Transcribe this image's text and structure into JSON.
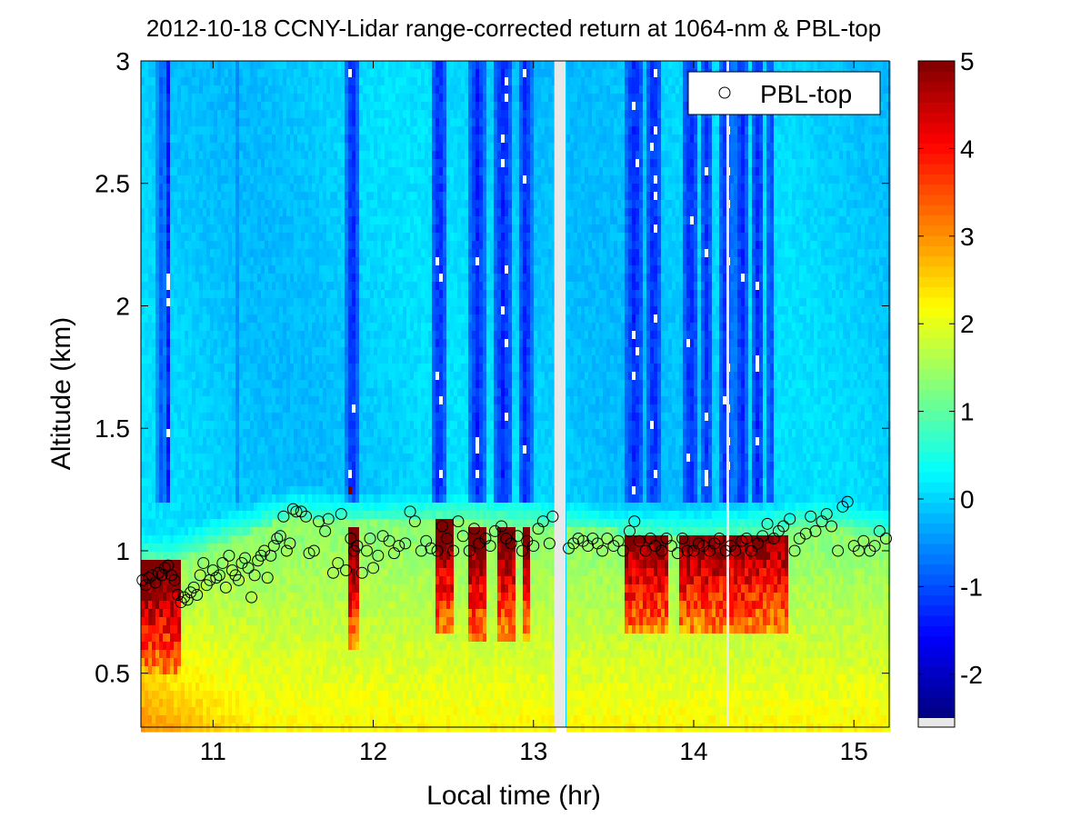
{
  "chart_data": {
    "type": "heatmap",
    "title": "2012-10-18 CCNY-Lidar range-corrected return at 1064-nm & PBL-top",
    "xlabel": "Local time (hr)",
    "ylabel": "Altitude (km)",
    "xlim": [
      10.55,
      15.22
    ],
    "ylim": [
      0.28,
      3.0
    ],
    "xticks": [
      11,
      12,
      13,
      14,
      15
    ],
    "xtick_labels": [
      "11",
      "12",
      "13",
      "14",
      "15"
    ],
    "yticks": [
      0.5,
      1,
      1.5,
      2,
      2.5,
      3
    ],
    "ytick_labels": [
      "0.5",
      "1",
      "1.5",
      "2",
      "2.5",
      "3"
    ],
    "colorbar": {
      "range": [
        -2.5,
        5
      ],
      "ticks": [
        -2,
        -1,
        0,
        1,
        2,
        3,
        4,
        5
      ],
      "tick_labels": [
        "-2",
        "-1",
        "0",
        "1",
        "2",
        "3",
        "4",
        "5"
      ],
      "colormap": "jet"
    },
    "data_gap": [
      13.13,
      13.2
    ],
    "blank_line_time": 14.21,
    "cloud_columns": [
      {
        "t": 10.68,
        "w": 0.03,
        "strength": 0.7
      },
      {
        "t": 10.72,
        "w": 0.02,
        "strength": 1.0
      },
      {
        "t": 11.87,
        "w": 0.04,
        "strength": 1.0
      },
      {
        "t": 12.41,
        "w": 0.05,
        "strength": 1.0
      },
      {
        "t": 12.65,
        "w": 0.05,
        "strength": 1.0
      },
      {
        "t": 12.81,
        "w": 0.06,
        "strength": 1.0
      },
      {
        "t": 12.95,
        "w": 0.04,
        "strength": 1.0
      },
      {
        "t": 13.63,
        "w": 0.06,
        "strength": 1.0
      },
      {
        "t": 13.75,
        "w": 0.05,
        "strength": 1.0
      },
      {
        "t": 13.98,
        "w": 0.05,
        "strength": 1.0
      },
      {
        "t": 14.08,
        "w": 0.04,
        "strength": 0.9
      },
      {
        "t": 14.2,
        "w": 0.04,
        "strength": 1.0
      },
      {
        "t": 14.3,
        "w": 0.04,
        "strength": 1.0
      },
      {
        "t": 14.4,
        "w": 0.04,
        "strength": 1.0
      },
      {
        "t": 14.48,
        "w": 0.03,
        "strength": 0.8
      },
      {
        "t": 11.15,
        "w": 0.01,
        "strength": 0.4
      }
    ],
    "boundary_layer_top_km": [
      [
        10.55,
        0.95
      ],
      [
        10.75,
        0.95
      ],
      [
        11.0,
        1.02
      ],
      [
        11.5,
        1.15
      ],
      [
        12.0,
        1.12
      ],
      [
        12.5,
        1.12
      ],
      [
        13.0,
        1.1
      ],
      [
        13.5,
        1.08
      ],
      [
        14.0,
        1.07
      ],
      [
        14.5,
        1.07
      ],
      [
        14.8,
        1.1
      ],
      [
        15.22,
        1.05
      ]
    ],
    "strong_return_columns": [
      {
        "t0": 10.55,
        "t1": 10.8,
        "top": 0.95
      },
      {
        "t0": 11.85,
        "t1": 11.92,
        "top": 1.05
      },
      {
        "t0": 12.38,
        "t1": 12.5,
        "top": 1.1
      },
      {
        "t0": 12.6,
        "t1": 12.7,
        "top": 1.08
      },
      {
        "t0": 12.77,
        "t1": 12.88,
        "top": 1.08
      },
      {
        "t0": 12.93,
        "t1": 12.98,
        "top": 1.08
      },
      {
        "t0": 13.57,
        "t1": 13.84,
        "top": 1.1
      },
      {
        "t0": 13.92,
        "t1": 14.58,
        "top": 1.12
      }
    ],
    "series": [
      {
        "name": "PBL-top",
        "marker": "o",
        "x": [
          10.56,
          10.58,
          10.6,
          10.62,
          10.64,
          10.66,
          10.68,
          10.7,
          10.72,
          10.74,
          10.76,
          10.78,
          10.8,
          10.82,
          10.84,
          10.86,
          10.88,
          10.9,
          10.92,
          10.94,
          10.96,
          10.98,
          11.0,
          11.02,
          11.04,
          11.06,
          11.08,
          11.1,
          11.12,
          11.14,
          11.16,
          11.18,
          11.2,
          11.22,
          11.24,
          11.26,
          11.28,
          11.3,
          11.32,
          11.34,
          11.36,
          11.38,
          11.4,
          11.42,
          11.44,
          11.46,
          11.48,
          11.5,
          11.52,
          11.55,
          11.58,
          11.6,
          11.63,
          11.66,
          11.7,
          11.72,
          11.75,
          11.78,
          11.8,
          11.83,
          11.86,
          11.88,
          11.9,
          11.93,
          11.96,
          11.98,
          12.0,
          12.03,
          12.06,
          12.1,
          12.13,
          12.16,
          12.2,
          12.23,
          12.26,
          12.3,
          12.33,
          12.36,
          12.4,
          12.43,
          12.46,
          12.5,
          12.53,
          12.56,
          12.6,
          12.63,
          12.66,
          12.7,
          12.73,
          12.76,
          12.8,
          12.83,
          12.86,
          12.9,
          12.93,
          12.96,
          13.0,
          13.03,
          13.06,
          13.1,
          13.12,
          13.22,
          13.25,
          13.28,
          13.31,
          13.34,
          13.37,
          13.4,
          13.43,
          13.46,
          13.5,
          13.53,
          13.56,
          13.6,
          13.63,
          13.66,
          13.7,
          13.73,
          13.76,
          13.8,
          13.83,
          13.86,
          13.9,
          13.93,
          13.96,
          14.0,
          14.03,
          14.06,
          14.1,
          14.13,
          14.16,
          14.2,
          14.23,
          14.26,
          14.3,
          14.33,
          14.36,
          14.4,
          14.43,
          14.46,
          14.5,
          14.53,
          14.56,
          14.6,
          14.63,
          14.66,
          14.7,
          14.73,
          14.76,
          14.8,
          14.83,
          14.86,
          14.9,
          14.93,
          14.96,
          15.0,
          15.03,
          15.06,
          15.1,
          15.13,
          15.16,
          15.2
        ],
        "y": [
          0.88,
          0.86,
          0.89,
          0.9,
          0.87,
          0.91,
          0.9,
          0.93,
          0.94,
          0.9,
          0.88,
          0.82,
          0.79,
          0.81,
          0.8,
          0.83,
          0.85,
          0.82,
          0.9,
          0.95,
          0.86,
          0.88,
          0.92,
          0.89,
          0.9,
          0.95,
          0.85,
          0.98,
          0.92,
          0.9,
          0.88,
          0.95,
          0.97,
          0.93,
          0.81,
          0.9,
          0.96,
          0.98,
          1.0,
          0.89,
          0.98,
          1.02,
          1.05,
          1.06,
          1.14,
          1.0,
          1.03,
          1.17,
          1.16,
          1.16,
          1.14,
          0.99,
          1.0,
          1.12,
          1.08,
          1.13,
          0.91,
          0.95,
          1.15,
          0.92,
          1.05,
          1.0,
          1.02,
          0.91,
          1.0,
          1.05,
          0.93,
          0.98,
          1.06,
          1.04,
          0.99,
          1.02,
          1.03,
          1.16,
          1.12,
          1.0,
          1.04,
          1.01,
          1.0,
          1.1,
          1.05,
          1.0,
          1.12,
          1.06,
          1.0,
          1.09,
          1.03,
          1.05,
          1.02,
          1.08,
          1.1,
          1.05,
          1.03,
          1.06,
          1.0,
          1.04,
          1.02,
          1.09,
          1.12,
          1.03,
          1.14,
          1.01,
          1.03,
          1.05,
          1.04,
          1.02,
          1.05,
          1.03,
          1.0,
          1.05,
          1.02,
          1.04,
          1.0,
          1.08,
          1.12,
          1.04,
          1.0,
          1.05,
          1.02,
          1.0,
          1.05,
          1.02,
          0.99,
          1.05,
          1.0,
          1.0,
          1.03,
          1.02,
          1.0,
          1.03,
          1.05,
          1.0,
          1.02,
          1.0,
          1.04,
          1.05,
          1.0,
          1.03,
          1.06,
          1.11,
          1.05,
          1.08,
          1.1,
          1.13,
          1.0,
          1.05,
          1.07,
          1.14,
          1.08,
          1.12,
          1.15,
          1.1,
          1.0,
          1.18,
          1.2,
          1.02,
          1.0,
          1.04,
          1.0,
          1.02,
          1.08,
          1.05
        ]
      }
    ],
    "legend": {
      "position": "top-right",
      "label": "PBL-top"
    }
  }
}
